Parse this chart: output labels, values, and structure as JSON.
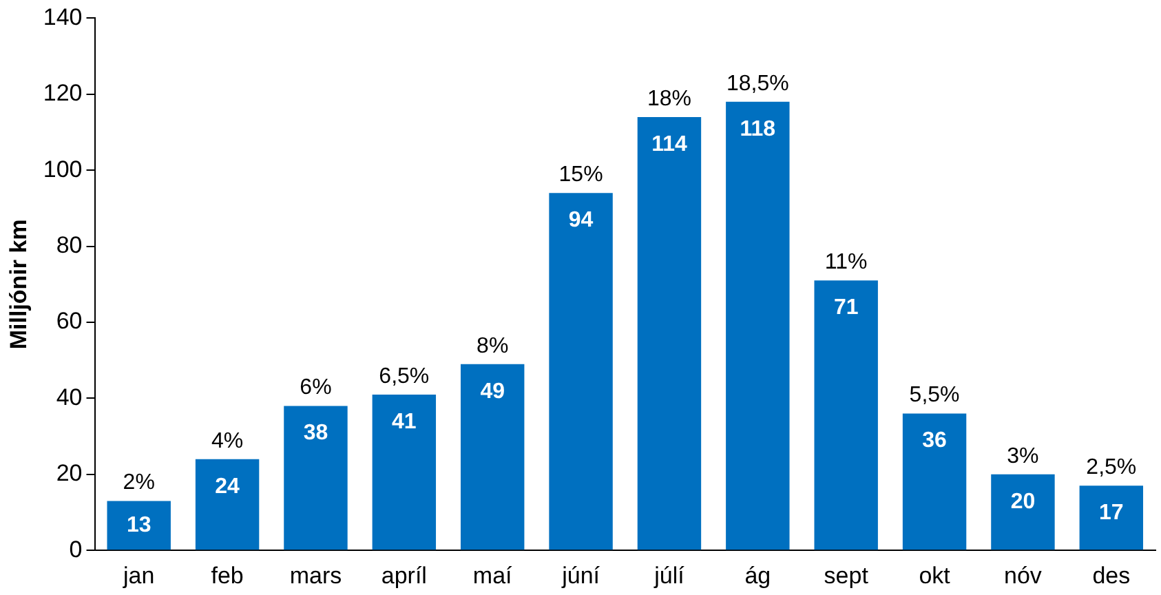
{
  "chart_data": {
    "type": "bar",
    "ylabel": "Milljónir km",
    "categories": [
      "jan",
      "feb",
      "mars",
      "apríl",
      "maí",
      "júní",
      "júlí",
      "ág",
      "sept",
      "okt",
      "nóv",
      "des"
    ],
    "values": [
      13,
      24,
      38,
      41,
      49,
      94,
      114,
      118,
      71,
      36,
      20,
      17
    ],
    "annotations": [
      {
        "text": "2%",
        "x": "jan",
        "y": 13
      },
      {
        "text": "4%",
        "x": "feb",
        "y": 24
      },
      {
        "text": "6%",
        "x": "mars",
        "y": 38
      },
      {
        "text": "6,5%",
        "x": "apríl",
        "y": 41
      },
      {
        "text": "8%",
        "x": "maí",
        "y": 49
      },
      {
        "text": "15%",
        "x": "júní",
        "y": 94
      },
      {
        "text": "18%",
        "x": "júlí",
        "y": 114
      },
      {
        "text": "18,5%",
        "x": "ág",
        "y": 118
      },
      {
        "text": "11%",
        "x": "sept",
        "y": 71
      },
      {
        "text": "5,5%",
        "x": "okt",
        "y": 36
      },
      {
        "text": "3%",
        "x": "nóv",
        "y": 20
      },
      {
        "text": "2,5%",
        "x": "des",
        "y": 17
      }
    ],
    "data_labels": true,
    "color": "#0070c0",
    "ylim": [
      0,
      140
    ],
    "yticks": [
      0,
      20,
      40,
      60,
      80,
      100,
      120,
      140
    ],
    "grid": false,
    "legend": false
  }
}
